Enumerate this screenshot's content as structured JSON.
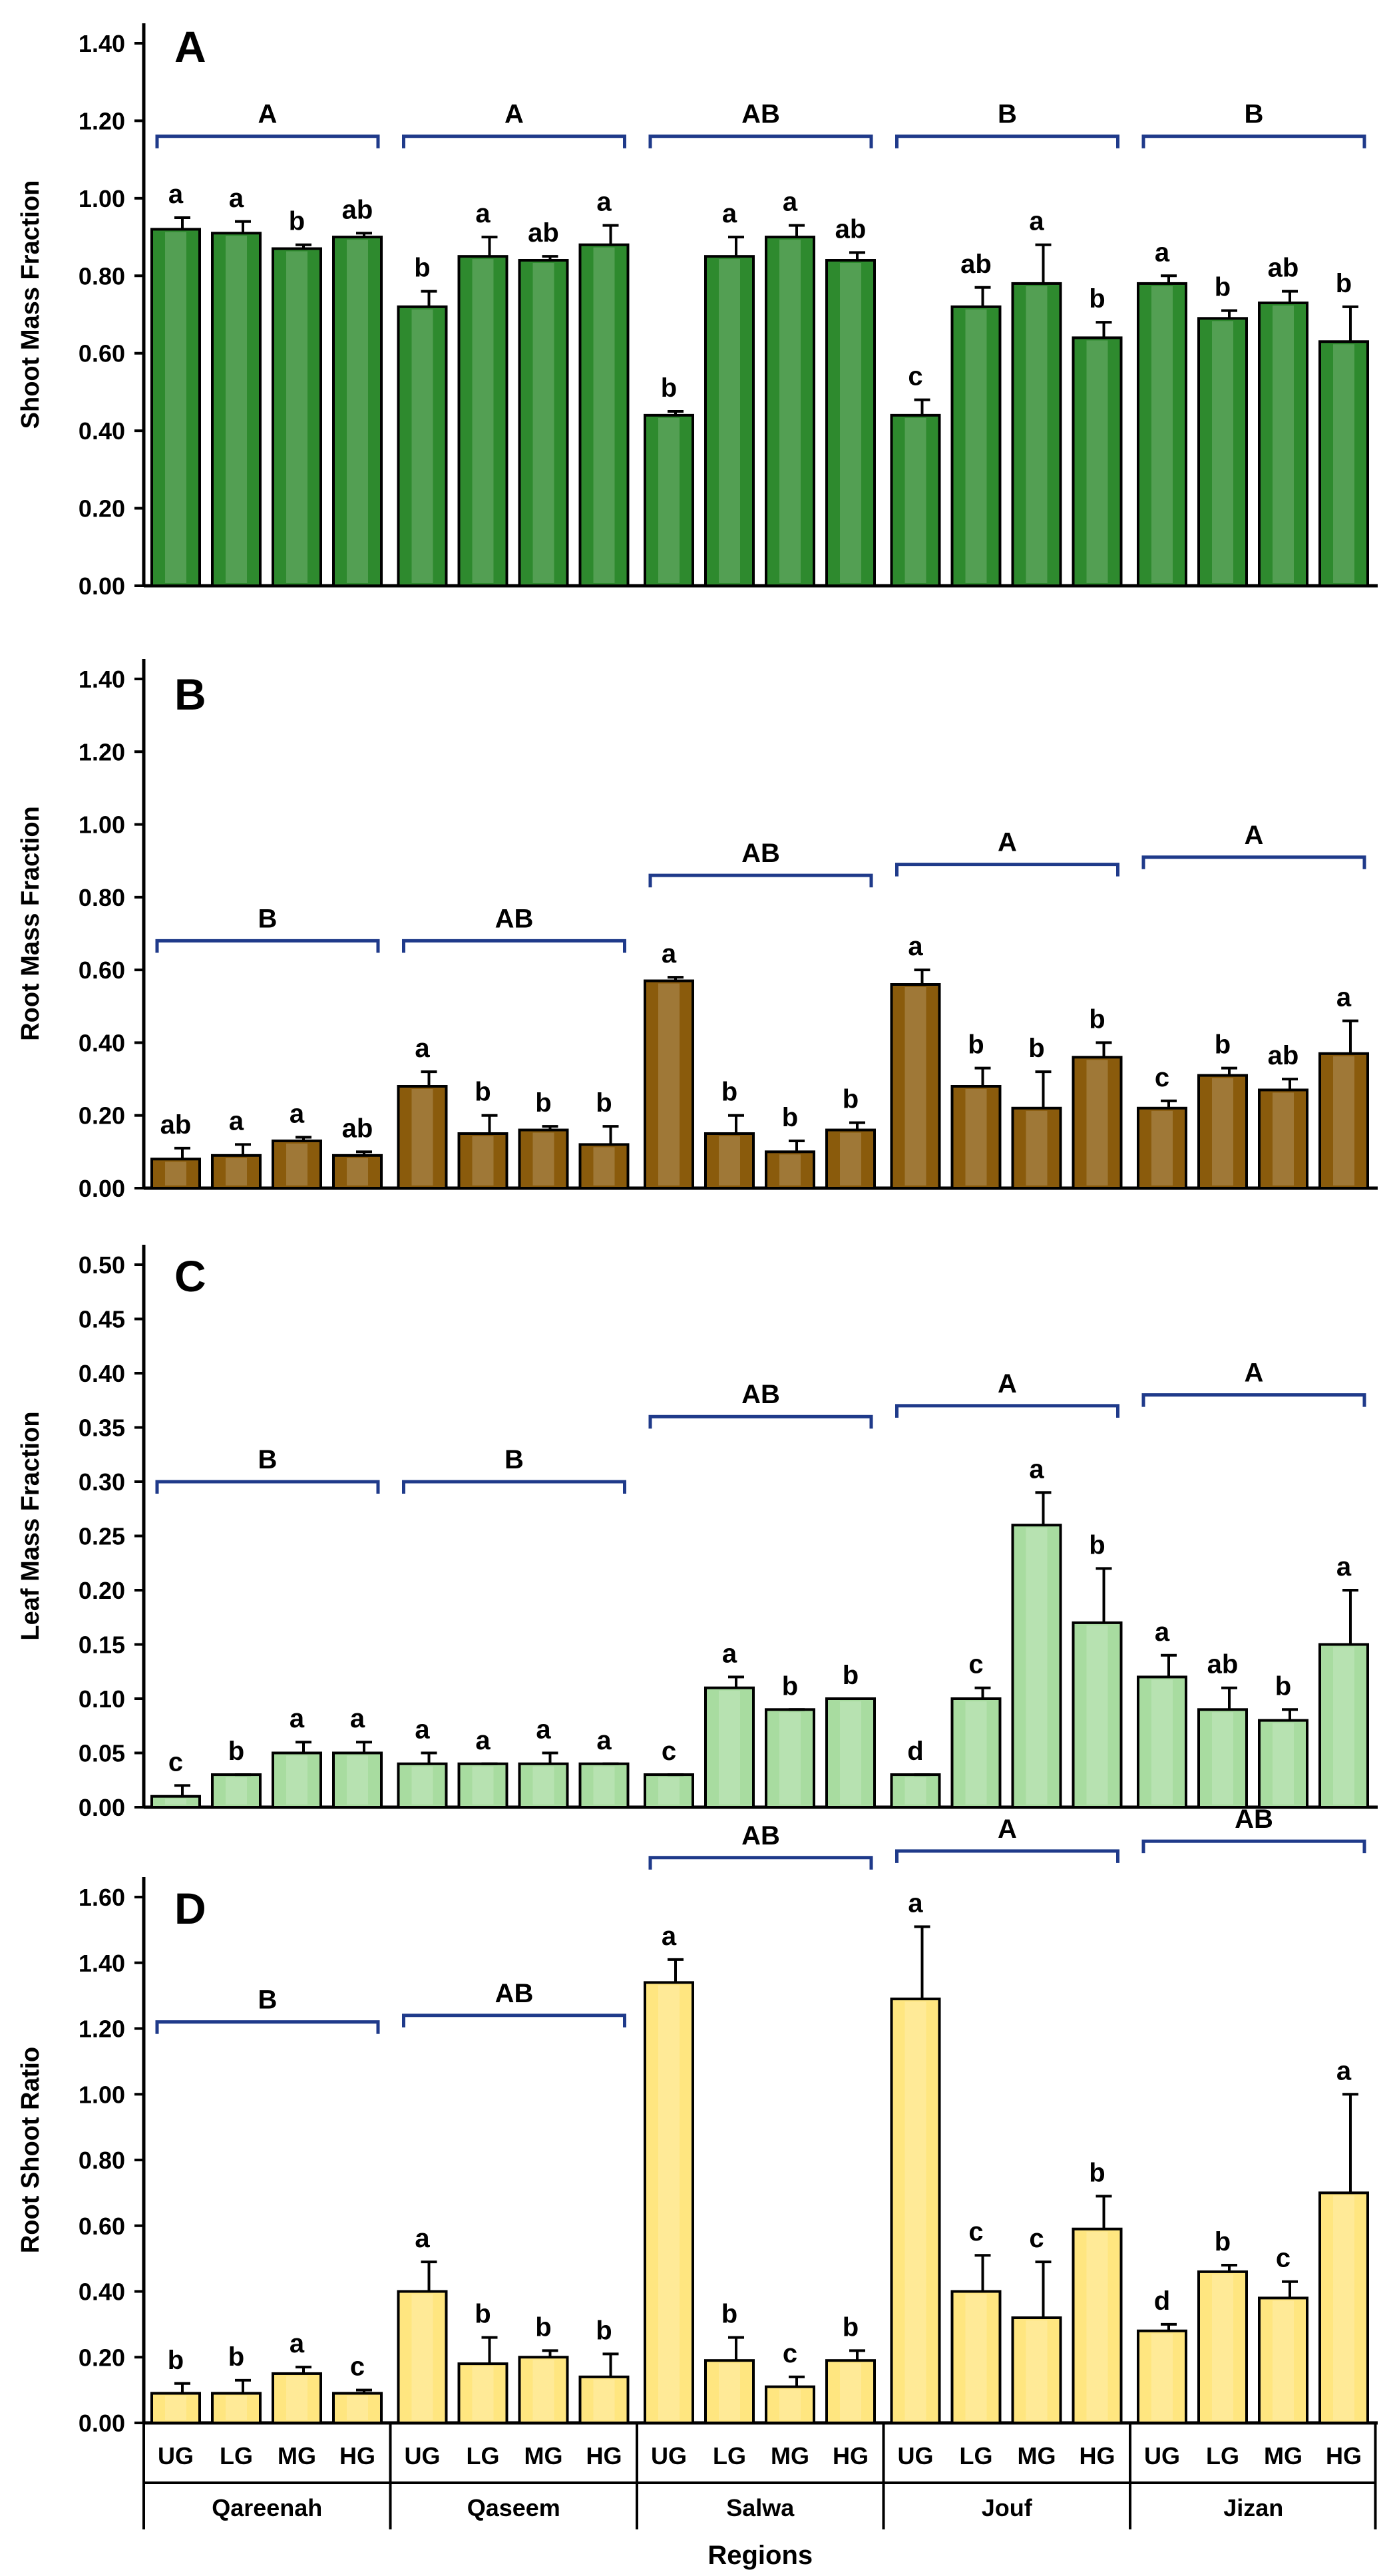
{
  "colors": {
    "shoot": "#2e8a2e",
    "root": "#8a5b0c",
    "leaf": "#a8dca0",
    "ratio": "#ffe680",
    "bracket": "#1f3a8a",
    "axis": "#000000"
  },
  "x_axis": {
    "title": "Regions",
    "regions": [
      "Qareenah",
      "Qaseem",
      "Salwa",
      "Jouf",
      "Jizan"
    ],
    "categories": [
      "UG",
      "LG",
      "MG",
      "HG"
    ]
  },
  "chart_data": [
    {
      "type": "bar",
      "panel_label": "A",
      "ylabel": "Shoot Mass Fraction",
      "ylim": [
        0,
        1.4
      ],
      "ticks": [
        "0.00",
        "0.20",
        "0.40",
        "0.60",
        "0.80",
        "1.00",
        "1.20",
        "1.40"
      ],
      "tick_values": [
        0,
        0.2,
        0.4,
        0.6,
        0.8,
        1.0,
        1.2,
        1.4
      ],
      "color_key": "shoot",
      "groups": [
        {
          "region": "Qareenah",
          "values": [
            0.92,
            0.91,
            0.87,
            0.9
          ],
          "errors": [
            0.03,
            0.03,
            0.01,
            0.01
          ],
          "letters": [
            "a",
            "a",
            "b",
            "ab"
          ],
          "group_letter": "A",
          "bracket_y": 1.16
        },
        {
          "region": "Qaseem",
          "values": [
            0.72,
            0.85,
            0.84,
            0.88
          ],
          "errors": [
            0.04,
            0.05,
            0.01,
            0.05
          ],
          "letters": [
            "b",
            "a",
            "ab",
            "a"
          ],
          "group_letter": "A",
          "bracket_y": 1.16
        },
        {
          "region": "Salwa",
          "values": [
            0.44,
            0.85,
            0.9,
            0.84
          ],
          "errors": [
            0.01,
            0.05,
            0.03,
            0.02
          ],
          "letters": [
            "b",
            "a",
            "a",
            "ab"
          ],
          "group_letter": "AB",
          "bracket_y": 1.16
        },
        {
          "region": "Jouf",
          "values": [
            0.44,
            0.72,
            0.78,
            0.64
          ],
          "errors": [
            0.04,
            0.05,
            0.1,
            0.04
          ],
          "letters": [
            "c",
            "ab",
            "a",
            "b"
          ],
          "group_letter": "B",
          "bracket_y": 1.16
        },
        {
          "region": "Jizan",
          "values": [
            0.78,
            0.69,
            0.73,
            0.63
          ],
          "errors": [
            0.02,
            0.02,
            0.03,
            0.09
          ],
          "letters": [
            "a",
            "b",
            "ab",
            "b"
          ],
          "group_letter": "B",
          "bracket_y": 1.16
        }
      ]
    },
    {
      "type": "bar",
      "panel_label": "B",
      "ylabel": "Root Mass Fraction",
      "ylim": [
        0,
        1.5
      ],
      "ticks": [
        "0.00",
        "0.20",
        "0.40",
        "0.60",
        "0.80",
        "1.00",
        "1.20",
        "1.40"
      ],
      "tick_values": [
        0,
        0.2,
        0.4,
        0.6,
        0.8,
        1.0,
        1.2,
        1.4
      ],
      "color_key": "root",
      "groups": [
        {
          "region": "Qareenah",
          "values": [
            0.08,
            0.09,
            0.13,
            0.09
          ],
          "errors": [
            0.03,
            0.03,
            0.01,
            0.01
          ],
          "letters": [
            "ab",
            "a",
            "a",
            "ab"
          ],
          "group_letter": "B",
          "bracket_y": 0.68
        },
        {
          "region": "Qaseem",
          "values": [
            0.28,
            0.15,
            0.16,
            0.12
          ],
          "errors": [
            0.04,
            0.05,
            0.01,
            0.05
          ],
          "letters": [
            "a",
            "b",
            "b",
            "b"
          ],
          "group_letter": "AB",
          "bracket_y": 0.68
        },
        {
          "region": "Salwa",
          "values": [
            0.57,
            0.15,
            0.1,
            0.16
          ],
          "errors": [
            0.01,
            0.05,
            0.03,
            0.02
          ],
          "letters": [
            "a",
            "b",
            "b",
            "b"
          ],
          "group_letter": "AB",
          "bracket_y": 0.86
        },
        {
          "region": "Jouf",
          "values": [
            0.56,
            0.28,
            0.22,
            0.36
          ],
          "errors": [
            0.04,
            0.05,
            0.1,
            0.04
          ],
          "letters": [
            "a",
            "b",
            "b",
            "b"
          ],
          "group_letter": "A",
          "bracket_y": 0.89
        },
        {
          "region": "Jizan",
          "values": [
            0.22,
            0.31,
            0.27,
            0.37
          ],
          "errors": [
            0.02,
            0.02,
            0.03,
            0.09
          ],
          "letters": [
            "c",
            "b",
            "ab",
            "a"
          ],
          "group_letter": "A",
          "bracket_y": 0.91
        }
      ]
    },
    {
      "type": "bar",
      "panel_label": "C",
      "ylabel": "Leaf Mass Fraction",
      "ylim": [
        0,
        0.5
      ],
      "ticks": [
        "0.00",
        "0.05",
        "0.10",
        "0.15",
        "0.20",
        "0.25",
        "0.30",
        "0.35",
        "0.40",
        "0.45",
        "0.50"
      ],
      "tick_values": [
        0,
        0.05,
        0.1,
        0.15,
        0.2,
        0.25,
        0.3,
        0.35,
        0.4,
        0.45,
        0.5
      ],
      "color_key": "leaf",
      "groups": [
        {
          "region": "Qareenah",
          "values": [
            0.01,
            0.03,
            0.05,
            0.05
          ],
          "errors": [
            0.01,
            0.0,
            0.01,
            0.01
          ],
          "letters": [
            "c",
            "b",
            "a",
            "a"
          ],
          "group_letter": "B",
          "bracket_y": 0.3
        },
        {
          "region": "Qaseem",
          "values": [
            0.04,
            0.04,
            0.04,
            0.04
          ],
          "errors": [
            0.01,
            0.0,
            0.01,
            0.0
          ],
          "letters": [
            "a",
            "a",
            "a",
            "a"
          ],
          "group_letter": "B",
          "bracket_y": 0.3
        },
        {
          "region": "Salwa",
          "values": [
            0.03,
            0.11,
            0.09,
            0.1
          ],
          "errors": [
            0.0,
            0.01,
            0.0,
            0.0
          ],
          "letters": [
            "c",
            "a",
            "b",
            "b"
          ],
          "group_letter": "AB",
          "bracket_y": 0.36
        },
        {
          "region": "Jouf",
          "values": [
            0.03,
            0.1,
            0.26,
            0.17
          ],
          "errors": [
            0.0,
            0.01,
            0.03,
            0.05
          ],
          "letters": [
            "d",
            "c",
            "a",
            "b"
          ],
          "group_letter": "A",
          "bracket_y": 0.37
        },
        {
          "region": "Jizan",
          "values": [
            0.12,
            0.09,
            0.08,
            0.15
          ],
          "errors": [
            0.02,
            0.02,
            0.01,
            0.05
          ],
          "letters": [
            "a",
            "ab",
            "b",
            "a"
          ],
          "group_letter": "A",
          "bracket_y": 0.38
        }
      ]
    },
    {
      "type": "bar",
      "panel_label": "D",
      "ylabel": "Root Shoot Ratio",
      "ylim": [
        0,
        1.6
      ],
      "ticks": [
        "0.00",
        "0.20",
        "0.40",
        "0.60",
        "0.80",
        "1.00",
        "1.20",
        "1.40",
        "1.60"
      ],
      "tick_values": [
        0,
        0.2,
        0.4,
        0.6,
        0.8,
        1.0,
        1.2,
        1.4,
        1.6
      ],
      "color_key": "ratio",
      "groups": [
        {
          "region": "Qareenah",
          "values": [
            0.09,
            0.09,
            0.15,
            0.09
          ],
          "errors": [
            0.03,
            0.04,
            0.02,
            0.01
          ],
          "letters": [
            "b",
            "b",
            "a",
            "c"
          ],
          "group_letter": "B",
          "bracket_y": 1.22
        },
        {
          "region": "Qaseem",
          "values": [
            0.4,
            0.18,
            0.2,
            0.14
          ],
          "errors": [
            0.09,
            0.08,
            0.02,
            0.07
          ],
          "letters": [
            "a",
            "b",
            "b",
            "b"
          ],
          "group_letter": "AB",
          "bracket_y": 1.24
        },
        {
          "region": "Salwa",
          "values": [
            1.34,
            0.19,
            0.11,
            0.19
          ],
          "errors": [
            0.07,
            0.07,
            0.03,
            0.03
          ],
          "letters": [
            "a",
            "b",
            "c",
            "b"
          ],
          "group_letter": "AB",
          "bracket_y": 1.72
        },
        {
          "region": "Jouf",
          "values": [
            1.29,
            0.4,
            0.32,
            0.59
          ],
          "errors": [
            0.22,
            0.11,
            0.17,
            0.1
          ],
          "letters": [
            "a",
            "c",
            "c",
            "b"
          ],
          "group_letter": "A",
          "bracket_y": 1.74
        },
        {
          "region": "Jizan",
          "values": [
            0.28,
            0.46,
            0.38,
            0.7
          ],
          "errors": [
            0.02,
            0.02,
            0.05,
            0.3
          ],
          "letters": [
            "d",
            "b",
            "c",
            "a"
          ],
          "group_letter": "AB",
          "bracket_y": 1.77
        }
      ]
    }
  ]
}
